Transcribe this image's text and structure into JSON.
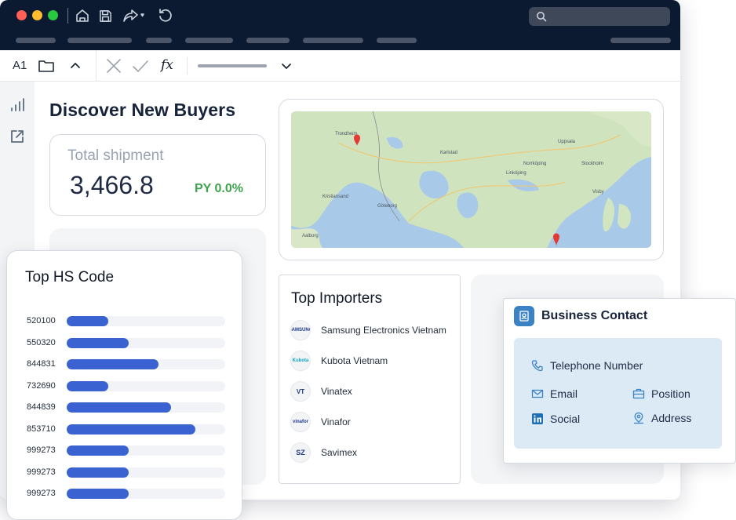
{
  "formula_bar": {
    "cell_ref": "A1",
    "fx_label": "fx"
  },
  "dashboard": {
    "title": "Discover New Buyers",
    "total_shipment": {
      "label": "Total shipment",
      "value": "3,466.8",
      "py": "PY 0.0%"
    }
  },
  "map": {
    "labels": [
      "Trondheim",
      "Göteborg",
      "Norrköping",
      "Linköping",
      "Stockholm",
      "Aalborg",
      "Kristiansand",
      "Visby",
      "Karlstad",
      "Uppsala"
    ]
  },
  "top_hs_code": {
    "title": "Top HS Code",
    "rows": [
      {
        "code": "520100",
        "fraction": 0.26
      },
      {
        "code": "550320",
        "fraction": 0.39
      },
      {
        "code": "844831",
        "fraction": 0.58
      },
      {
        "code": "732690",
        "fraction": 0.26
      },
      {
        "code": "844839",
        "fraction": 0.66
      },
      {
        "code": "853710",
        "fraction": 0.81
      },
      {
        "code": "999273",
        "fraction": 0.39
      },
      {
        "code": "999273",
        "fraction": 0.39
      },
      {
        "code": "999273",
        "fraction": 0.39
      }
    ],
    "bar_color": "#3a63d1"
  },
  "top_importers": {
    "title": "Top Importers",
    "items": [
      {
        "name": "Samsung Electronics Vietnam",
        "logo": "SAMSUNG"
      },
      {
        "name": "Kubota Vietnam",
        "logo": "Kubota"
      },
      {
        "name": "Vinatex",
        "logo": "VT"
      },
      {
        "name": "Vinafor",
        "logo": "vinafor"
      },
      {
        "name": "Savimex",
        "logo": "SZ"
      }
    ]
  },
  "business_contact": {
    "title": "Business Contact",
    "fields": {
      "telephone": "Telephone Number",
      "email": "Email",
      "position": "Position",
      "social": "Social",
      "address": "Address"
    }
  },
  "colors": {
    "titlebar": "#0b1a30",
    "accent": "#3a63d1",
    "positive": "#3fa34d",
    "contact_panel": "#dbeaf5"
  }
}
